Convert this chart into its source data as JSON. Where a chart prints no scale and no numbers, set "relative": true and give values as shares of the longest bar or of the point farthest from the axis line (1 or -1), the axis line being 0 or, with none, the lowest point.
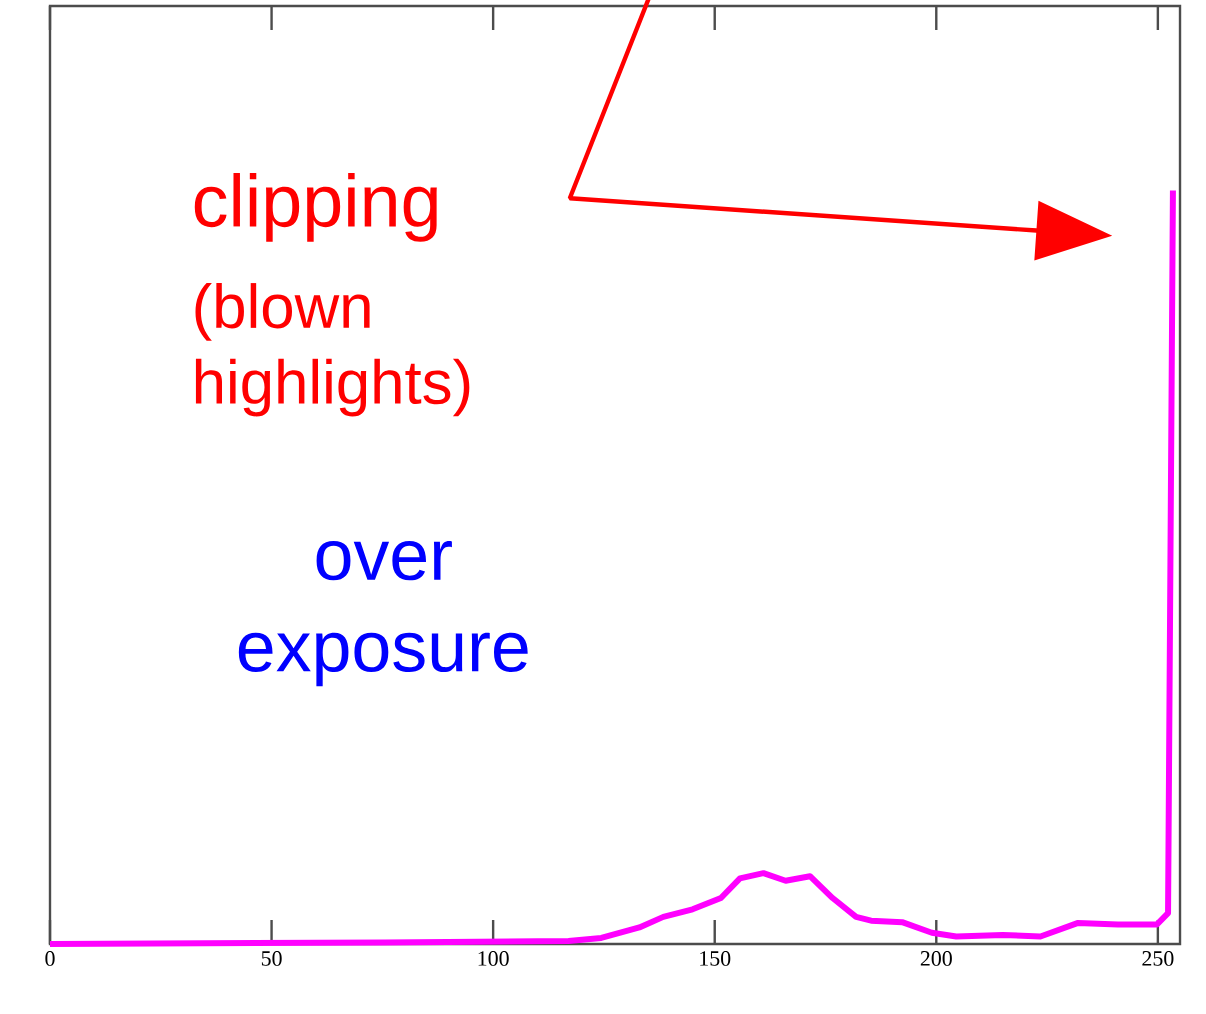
{
  "chart_data": {
    "type": "line",
    "relative": true,
    "xlim": [
      0,
      255
    ],
    "xticks": [
      0,
      50,
      100,
      150,
      200,
      250
    ],
    "tick_labels": "x",
    "marker": "none",
    "line_style": "solid",
    "series": [
      {
        "color": "#ff00ff",
        "x": [
          0,
          75.6,
          117,
          124.4,
          133,
          138.4,
          145,
          151.4,
          155.7,
          161,
          166,
          171.5,
          176.6,
          181.9,
          185.3,
          192.3,
          199,
          204.5,
          215,
          223.5,
          232,
          241,
          249.8,
          252.3,
          253.4
        ],
        "values": [
          0,
          0.002,
          0.004,
          0.008,
          0.022,
          0.036,
          0.046,
          0.061,
          0.087,
          0.094,
          0.084,
          0.09,
          0.061,
          0.036,
          0.031,
          0.029,
          0.015,
          0.01,
          0.012,
          0.01,
          0.028,
          0.026,
          0.026,
          0.041,
          1
        ]
      }
    ],
    "annotations": [
      "clipping",
      "(blown highlights)",
      "over exposure"
    ]
  }
}
